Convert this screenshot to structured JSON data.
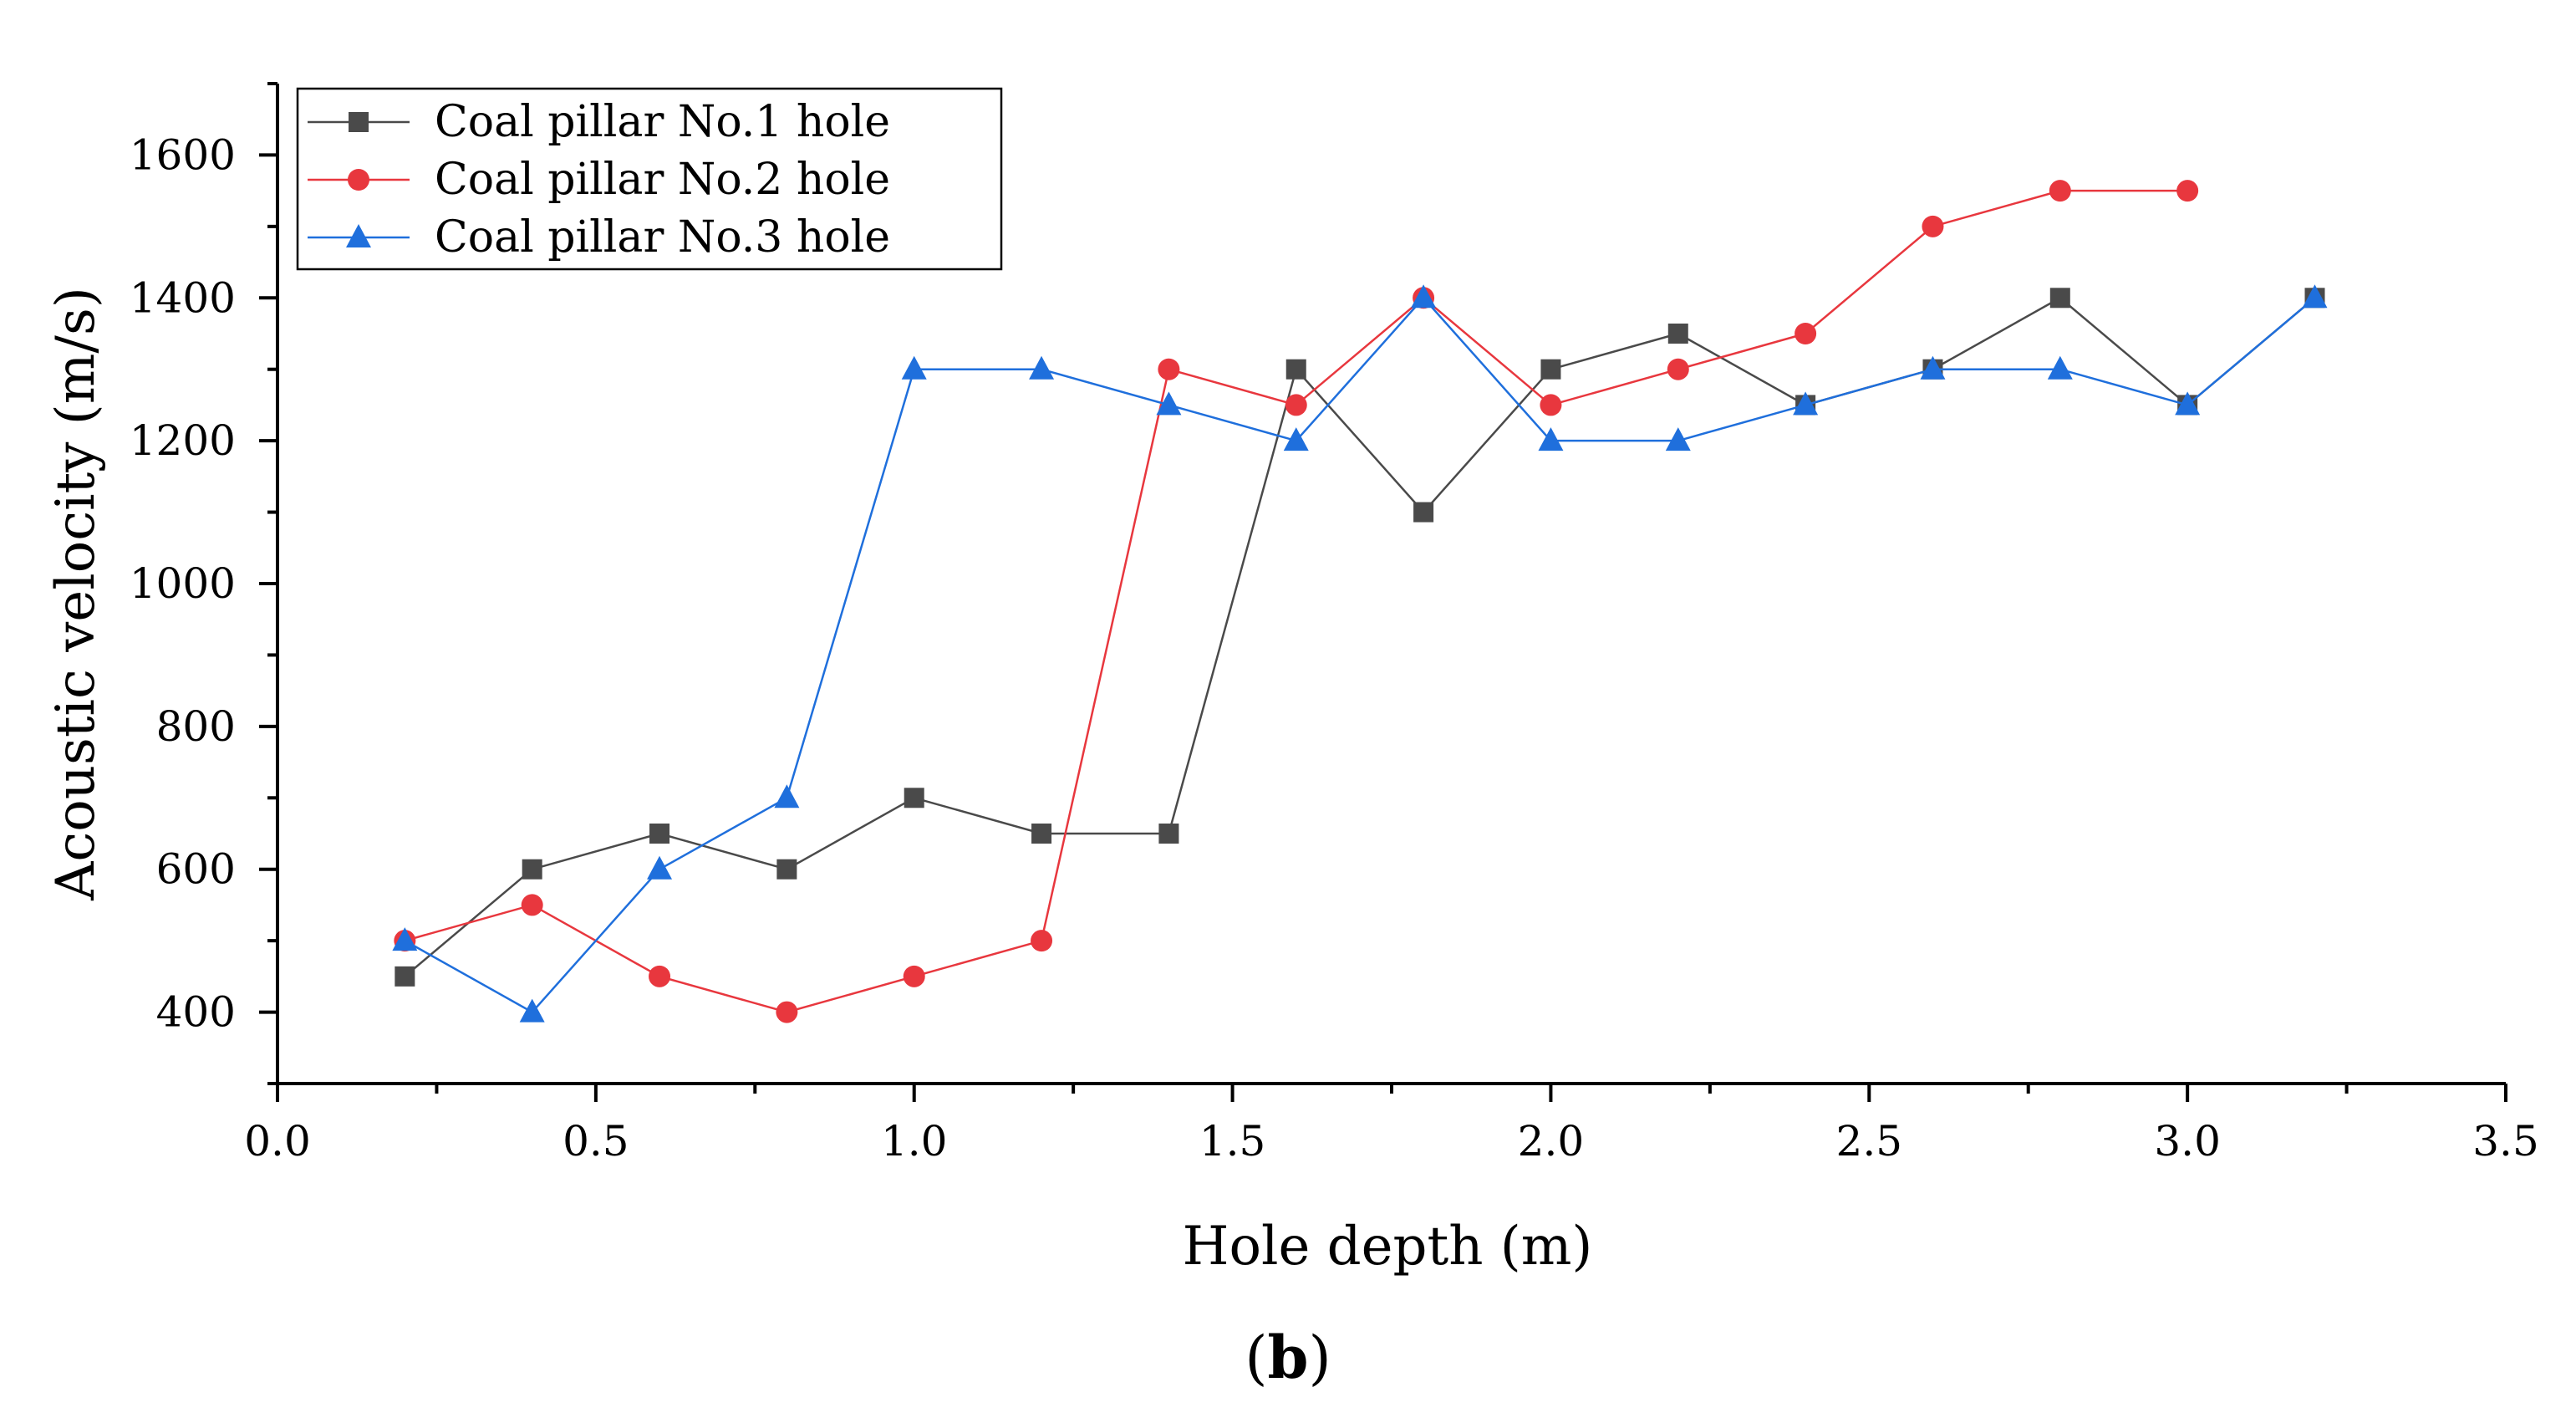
{
  "chart_data": {
    "type": "line",
    "title": "",
    "xlabel": "Hole depth (m)",
    "ylabel": "Acoustic velocity (m/s)",
    "xlim": [
      0.0,
      3.5
    ],
    "ylim": [
      300,
      1700
    ],
    "xticks": [
      0.0,
      0.5,
      1.0,
      1.5,
      2.0,
      2.5,
      3.0,
      3.5
    ],
    "xtick_labels": [
      "0.0",
      "0.5",
      "1.0",
      "1.5",
      "2.0",
      "2.5",
      "3.0",
      "3.5"
    ],
    "yticks": [
      400,
      600,
      800,
      1000,
      1200,
      1400,
      1600
    ],
    "ytick_labels": [
      "400",
      "600",
      "800",
      "1000",
      "1200",
      "1400",
      "1600"
    ],
    "grid": false,
    "legend_position": "top-left",
    "series": [
      {
        "name": "Coal pillar No.1 hole",
        "color": "#4a4a4a",
        "marker": "square",
        "x": [
          0.2,
          0.4,
          0.6,
          0.8,
          1.0,
          1.2,
          1.4,
          1.6,
          1.8,
          2.0,
          2.2,
          2.4,
          2.6,
          2.8,
          3.0,
          3.2
        ],
        "values": [
          450,
          600,
          650,
          600,
          700,
          650,
          650,
          1300,
          1100,
          1300,
          1350,
          1250,
          1300,
          1400,
          1250,
          1400
        ]
      },
      {
        "name": "Coal pillar No.2 hole",
        "color": "#e8373e",
        "marker": "circle",
        "x": [
          0.2,
          0.4,
          0.6,
          0.8,
          1.0,
          1.2,
          1.4,
          1.6,
          1.8,
          2.0,
          2.2,
          2.4,
          2.6,
          2.8,
          3.0
        ],
        "values": [
          500,
          550,
          450,
          400,
          450,
          500,
          1300,
          1250,
          1400,
          1250,
          1300,
          1350,
          1500,
          1550,
          1550
        ]
      },
      {
        "name": "Coal pillar No.3 hole",
        "color": "#1f6fdc",
        "marker": "triangle",
        "x": [
          0.2,
          0.4,
          0.6,
          0.8,
          1.0,
          1.2,
          1.4,
          1.6,
          1.8,
          2.0,
          2.2,
          2.4,
          2.6,
          2.8,
          3.0,
          3.2
        ],
        "values": [
          500,
          400,
          600,
          700,
          1300,
          1300,
          1250,
          1200,
          1400,
          1200,
          1200,
          1250,
          1300,
          1300,
          1250,
          1400
        ]
      }
    ]
  },
  "panel_label": {
    "open": "(",
    "letter": "b",
    "close": ")"
  }
}
